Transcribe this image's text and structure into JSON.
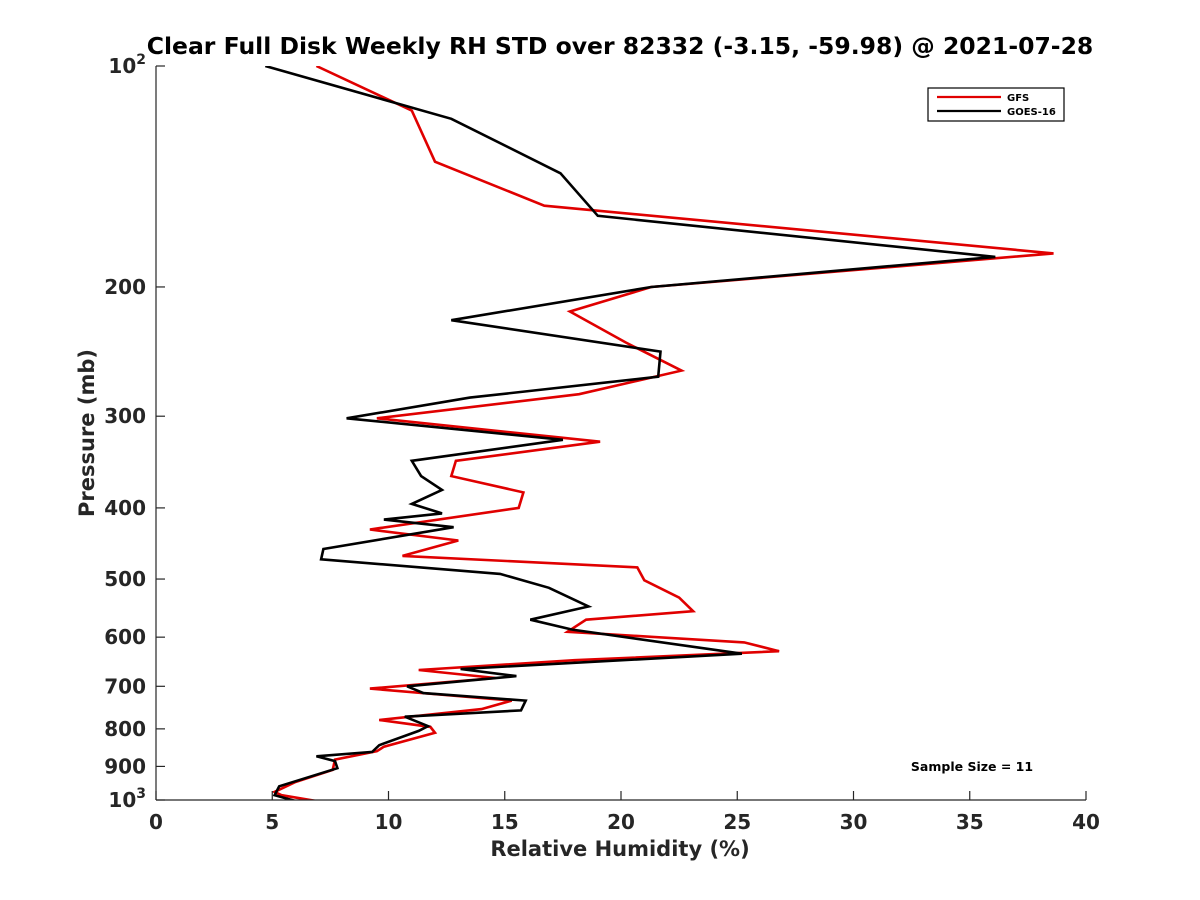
{
  "chart_data": {
    "type": "line",
    "title": "Clear Full Disk Weekly RH STD over 82332 (-3.15, -59.98) @ 2021-07-28",
    "xlabel": "Relative Humidity (%)",
    "ylabel": "Pressure (mb)",
    "xlim": [
      0,
      40
    ],
    "ylim": [
      100,
      1000
    ],
    "y_scale": "log",
    "y_reversed": true,
    "grid": false,
    "legend_position": "top-right",
    "x_ticks": [
      "0",
      "5",
      "10",
      "15",
      "20",
      "25",
      "30",
      "35",
      "40"
    ],
    "y_ticks": [
      {
        "value": 100,
        "base": "10",
        "exp": "2"
      },
      {
        "value": 200,
        "base": "200",
        "exp": ""
      },
      {
        "value": 300,
        "base": "300",
        "exp": ""
      },
      {
        "value": 400,
        "base": "400",
        "exp": ""
      },
      {
        "value": 500,
        "base": "500",
        "exp": ""
      },
      {
        "value": 600,
        "base": "600",
        "exp": ""
      },
      {
        "value": 700,
        "base": "700",
        "exp": ""
      },
      {
        "value": 800,
        "base": "800",
        "exp": ""
      },
      {
        "value": 900,
        "base": "900",
        "exp": ""
      },
      {
        "value": 1000,
        "base": "10",
        "exp": "3"
      }
    ],
    "annotation": "Sample Size = 11",
    "series": [
      {
        "name": "GFS",
        "color": "#e00000",
        "points": [
          [
            6.9,
            100
          ],
          [
            11.0,
            115
          ],
          [
            12.0,
            135
          ],
          [
            16.7,
            155
          ],
          [
            38.6,
            180
          ],
          [
            21.3,
            200
          ],
          [
            17.8,
            216
          ],
          [
            20.2,
            238
          ],
          [
            22.6,
            260
          ],
          [
            18.2,
            280
          ],
          [
            9.5,
            302
          ],
          [
            19.1,
            325
          ],
          [
            12.9,
            345
          ],
          [
            12.7,
            362
          ],
          [
            15.8,
            381
          ],
          [
            15.6,
            400
          ],
          [
            9.2,
            428
          ],
          [
            13.0,
            443
          ],
          [
            10.6,
            465
          ],
          [
            20.7,
            482
          ],
          [
            21.0,
            502
          ],
          [
            22.5,
            530
          ],
          [
            23.1,
            553
          ],
          [
            18.5,
            568
          ],
          [
            17.7,
            590
          ],
          [
            25.3,
            610
          ],
          [
            26.8,
            627
          ],
          [
            18.0,
            645
          ],
          [
            11.3,
            665
          ],
          [
            14.6,
            682
          ],
          [
            9.2,
            705
          ],
          [
            15.3,
            732
          ],
          [
            14.0,
            752
          ],
          [
            9.6,
            778
          ],
          [
            11.8,
            795
          ],
          [
            12.0,
            810
          ],
          [
            9.8,
            846
          ],
          [
            9.5,
            858
          ],
          [
            7.7,
            881
          ],
          [
            7.6,
            910
          ],
          [
            6.0,
            945
          ],
          [
            5.1,
            975
          ],
          [
            5.4,
            985
          ],
          [
            6.9,
            1003
          ]
        ]
      },
      {
        "name": "GOES-16",
        "color": "#000000",
        "points": [
          [
            4.7,
            100
          ],
          [
            12.7,
            118
          ],
          [
            17.4,
            140
          ],
          [
            19.0,
            160
          ],
          [
            36.1,
            182
          ],
          [
            21.3,
            200
          ],
          [
            12.7,
            222
          ],
          [
            21.7,
            245
          ],
          [
            21.6,
            265
          ],
          [
            13.5,
            283
          ],
          [
            8.2,
            302
          ],
          [
            17.5,
            323
          ],
          [
            11.0,
            345
          ],
          [
            11.4,
            362
          ],
          [
            12.3,
            378
          ],
          [
            11.0,
            395
          ],
          [
            12.3,
            407
          ],
          [
            9.8,
            415
          ],
          [
            12.8,
            425
          ],
          [
            7.2,
            455
          ],
          [
            7.1,
            470
          ],
          [
            14.8,
            492
          ],
          [
            16.9,
            514
          ],
          [
            18.6,
            545
          ],
          [
            16.1,
            568
          ],
          [
            17.9,
            586
          ],
          [
            25.2,
            632
          ],
          [
            13.1,
            663
          ],
          [
            15.5,
            678
          ],
          [
            10.8,
            700
          ],
          [
            11.5,
            715
          ],
          [
            15.9,
            732
          ],
          [
            15.7,
            755
          ],
          [
            10.7,
            770
          ],
          [
            11.7,
            793
          ],
          [
            11.3,
            805
          ],
          [
            9.6,
            842
          ],
          [
            9.3,
            860
          ],
          [
            6.9,
            872
          ],
          [
            7.7,
            885
          ],
          [
            7.8,
            905
          ],
          [
            5.3,
            958
          ],
          [
            5.1,
            985
          ],
          [
            6.0,
            1003
          ]
        ]
      }
    ]
  }
}
